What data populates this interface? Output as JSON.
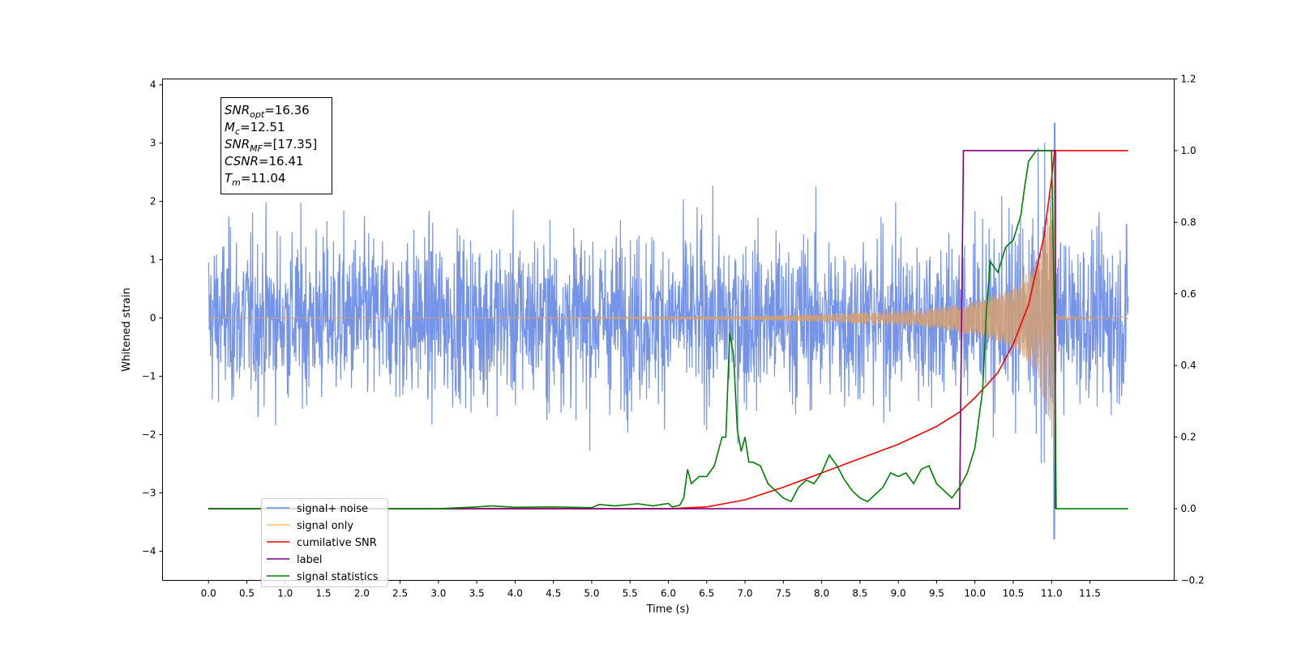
{
  "chart_data": {
    "type": "line",
    "xlabel": "Time (s)",
    "ylabel": "Whitened strain",
    "x_ticks": [
      "0.0",
      "0.5",
      "1.0",
      "1.5",
      "2.0",
      "2.5",
      "3.0",
      "3.5",
      "4.0",
      "4.5",
      "5.0",
      "5.5",
      "6.0",
      "6.5",
      "7.0",
      "7.5",
      "8.0",
      "8.5",
      "9.0",
      "9.5",
      "10.0",
      "10.5",
      "11.0",
      "11.5"
    ],
    "y_left_ticks": [
      "4",
      "3",
      "2",
      "1",
      "0",
      "−1",
      "−2",
      "−3",
      "−4"
    ],
    "y_right_ticks": [
      "1.2",
      "1.0",
      "0.8",
      "0.6",
      "0.4",
      "0.2",
      "0.0",
      "−0.2"
    ],
    "xlim": [
      -0.6,
      12.6
    ],
    "ylim_left": [
      -4.5,
      4.1
    ],
    "ylim_right": [
      -0.2,
      1.2
    ],
    "annotation": {
      "lines": [
        {
          "name": "SNR",
          "sub": "opt",
          "value": "=16.36"
        },
        {
          "name": "M",
          "sub": "c",
          "value": "=12.51"
        },
        {
          "name": "SNR",
          "sub": "MF",
          "value": "=[17.35]"
        },
        {
          "name": "CSNR",
          "sub": "",
          "value": "=16.41"
        },
        {
          "name": "T",
          "sub": "m",
          "value": "=11.04"
        }
      ]
    },
    "legend": {
      "placement": "lower-left",
      "entries": [
        {
          "label": "signal+ noise",
          "color": "#6f8ee6"
        },
        {
          "label": "signal only",
          "color": "#ffc36b"
        },
        {
          "label": "cumilative SNR",
          "color": "#ff0000"
        },
        {
          "label": "label",
          "color": "#800080"
        },
        {
          "label": "signal statistics",
          "color": "#008000"
        }
      ]
    },
    "series": [
      {
        "name": "signal+ noise",
        "axis": "left",
        "color": "#6f8ee6",
        "x_range": [
          0,
          12
        ],
        "noise_amplitude_std": 1.0,
        "glitch": {
          "t": 11.04,
          "min": -4.1,
          "max": 3.35
        }
      },
      {
        "name": "signal only",
        "axis": "left",
        "color": "#d4a072",
        "envelope": {
          "x": [
            0.0,
            5.0,
            7.0,
            8.0,
            9.0,
            9.5,
            10.0,
            10.5,
            10.8,
            11.0,
            11.04,
            11.06,
            12.0
          ],
          "amplitude": [
            0.0,
            0.01,
            0.03,
            0.07,
            0.12,
            0.18,
            0.3,
            0.5,
            0.95,
            2.0,
            2.7,
            0.03,
            0.02
          ]
        }
      },
      {
        "name": "cumilative SNR",
        "axis": "right",
        "color": "#ff0000",
        "x": [
          0.0,
          6.0,
          6.5,
          7.0,
          7.5,
          8.0,
          8.5,
          9.0,
          9.5,
          9.8,
          10.0,
          10.3,
          10.5,
          10.7,
          10.9,
          11.0,
          11.04,
          12.0
        ],
        "values": [
          0.0,
          0.0,
          0.005,
          0.025,
          0.06,
          0.1,
          0.14,
          0.18,
          0.23,
          0.27,
          0.31,
          0.38,
          0.46,
          0.57,
          0.76,
          0.92,
          1.0,
          1.0
        ]
      },
      {
        "name": "label",
        "axis": "right",
        "color": "#800080",
        "x": [
          0.0,
          9.8,
          9.85,
          11.04,
          11.05,
          11.05
        ],
        "values": [
          0.0,
          0.0,
          1.0,
          1.0,
          1.0,
          0.0
        ]
      },
      {
        "name": "signal statistics",
        "axis": "right",
        "color": "#008000",
        "x": [
          0.0,
          3.0,
          3.5,
          3.7,
          4.0,
          4.5,
          5.0,
          5.1,
          5.3,
          5.6,
          5.8,
          6.0,
          6.05,
          6.15,
          6.2,
          6.25,
          6.3,
          6.4,
          6.5,
          6.6,
          6.7,
          6.75,
          6.8,
          6.85,
          6.9,
          6.95,
          7.0,
          7.05,
          7.1,
          7.2,
          7.3,
          7.4,
          7.5,
          7.6,
          7.7,
          7.8,
          7.9,
          8.0,
          8.1,
          8.2,
          8.3,
          8.4,
          8.5,
          8.6,
          8.7,
          8.8,
          8.9,
          9.0,
          9.1,
          9.2,
          9.3,
          9.4,
          9.5,
          9.6,
          9.7,
          9.8,
          9.9,
          10.0,
          10.1,
          10.15,
          10.2,
          10.3,
          10.4,
          10.5,
          10.6,
          10.65,
          10.7,
          10.8,
          10.9,
          11.0,
          11.04,
          11.06,
          12.0
        ],
        "values": [
          0.0,
          0.0,
          0.005,
          0.008,
          0.004,
          0.005,
          0.003,
          0.012,
          0.008,
          0.014,
          0.008,
          0.015,
          0.005,
          0.01,
          0.03,
          0.11,
          0.07,
          0.09,
          0.09,
          0.12,
          0.2,
          0.2,
          0.49,
          0.43,
          0.22,
          0.16,
          0.2,
          0.13,
          0.13,
          0.12,
          0.07,
          0.05,
          0.03,
          0.02,
          0.06,
          0.08,
          0.07,
          0.1,
          0.15,
          0.12,
          0.08,
          0.05,
          0.03,
          0.02,
          0.04,
          0.06,
          0.1,
          0.09,
          0.1,
          0.07,
          0.11,
          0.12,
          0.07,
          0.05,
          0.03,
          0.06,
          0.1,
          0.17,
          0.33,
          0.55,
          0.69,
          0.66,
          0.73,
          0.75,
          0.82,
          0.9,
          0.97,
          1.0,
          1.0,
          1.0,
          0.5,
          0.0,
          0.0
        ]
      }
    ]
  }
}
